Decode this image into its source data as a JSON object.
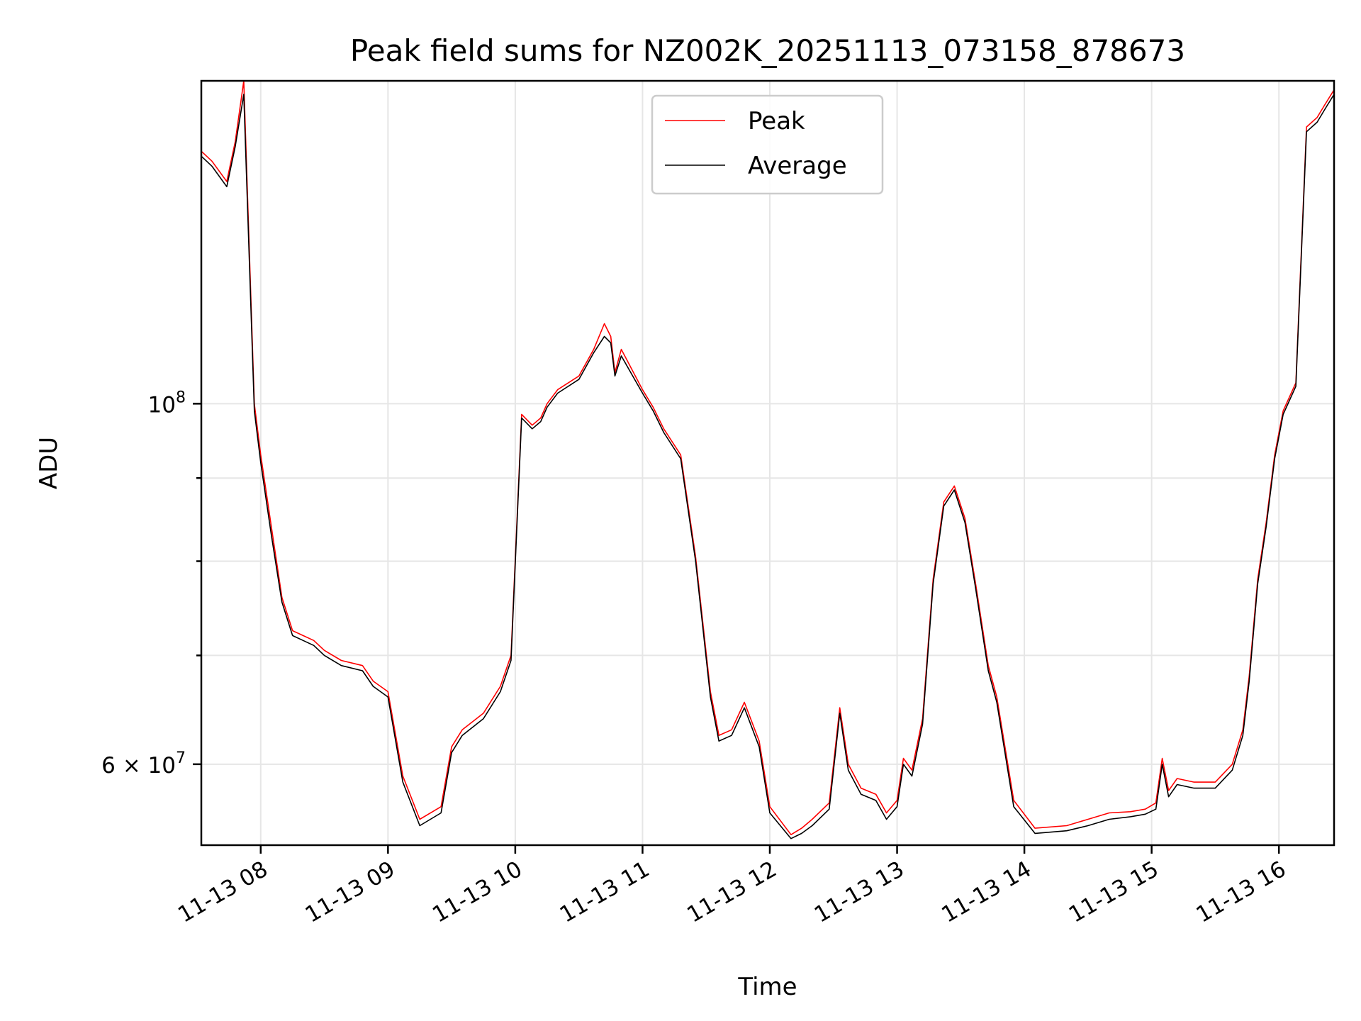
{
  "chart_data": {
    "type": "line",
    "title": "Peak field sums for NZ002K_20251113_073158_878673",
    "xlabel": "Time",
    "ylabel": "ADU",
    "y_scale": "log",
    "ylim": [
      53500000,
      158000000
    ],
    "xlim": [
      "2025-11-13 07:32",
      "2025-11-13 16:26"
    ],
    "x_tick_labels": [
      "11-13 08",
      "11-13 09",
      "11-13 10",
      "11-13 11",
      "11-13 12",
      "11-13 13",
      "11-13 14",
      "11-13 15",
      "11-13 16"
    ],
    "x_ticks": [
      "2025-11-13 08:00",
      "2025-11-13 09:00",
      "2025-11-13 10:00",
      "2025-11-13 11:00",
      "2025-11-13 12:00",
      "2025-11-13 13:00",
      "2025-11-13 14:00",
      "2025-11-13 15:00",
      "2025-11-13 16:00"
    ],
    "y_major_ticks": [
      {
        "value": 100000000,
        "base": "10",
        "exp": "8"
      },
      {
        "value": 60000000,
        "base": "6 × 10",
        "exp": "7"
      }
    ],
    "y_minor_ticks": [
      70000000,
      80000000,
      90000000
    ],
    "grid": true,
    "legend_position": "upper center",
    "series": [
      {
        "name": "Peak",
        "color": "#ff0000",
        "x": [
          "2025-11-13 07:32",
          "2025-11-13 07:37",
          "2025-11-13 07:44",
          "2025-11-13 07:48",
          "2025-11-13 07:52",
          "2025-11-13 07:57",
          "2025-11-13 08:00",
          "2025-11-13 08:05",
          "2025-11-13 08:10",
          "2025-11-13 08:15",
          "2025-11-13 08:20",
          "2025-11-13 08:25",
          "2025-11-13 08:30",
          "2025-11-13 08:38",
          "2025-11-13 08:48",
          "2025-11-13 08:53",
          "2025-11-13 09:00",
          "2025-11-13 09:07",
          "2025-11-13 09:15",
          "2025-11-13 09:25",
          "2025-11-13 09:30",
          "2025-11-13 09:35",
          "2025-11-13 09:45",
          "2025-11-13 09:53",
          "2025-11-13 09:58",
          "2025-11-13 10:03",
          "2025-11-13 10:08",
          "2025-11-13 10:12",
          "2025-11-13 10:15",
          "2025-11-13 10:20",
          "2025-11-13 10:30",
          "2025-11-13 10:37",
          "2025-11-13 10:42",
          "2025-11-13 10:45",
          "2025-11-13 10:47",
          "2025-11-13 10:50",
          "2025-11-13 11:00",
          "2025-11-13 11:05",
          "2025-11-13 11:10",
          "2025-11-13 11:18",
          "2025-11-13 11:25",
          "2025-11-13 11:32",
          "2025-11-13 11:36",
          "2025-11-13 11:42",
          "2025-11-13 11:48",
          "2025-11-13 11:55",
          "2025-11-13 12:00",
          "2025-11-13 12:10",
          "2025-11-13 12:15",
          "2025-11-13 12:20",
          "2025-11-13 12:28",
          "2025-11-13 12:33",
          "2025-11-13 12:37",
          "2025-11-13 12:43",
          "2025-11-13 12:50",
          "2025-11-13 12:55",
          "2025-11-13 13:00",
          "2025-11-13 13:03",
          "2025-11-13 13:07",
          "2025-11-13 13:12",
          "2025-11-13 13:17",
          "2025-11-13 13:22",
          "2025-11-13 13:27",
          "2025-11-13 13:32",
          "2025-11-13 13:37",
          "2025-11-13 13:43",
          "2025-11-13 13:47",
          "2025-11-13 13:55",
          "2025-11-13 14:05",
          "2025-11-13 14:20",
          "2025-11-13 14:30",
          "2025-11-13 14:40",
          "2025-11-13 14:50",
          "2025-11-13 14:57",
          "2025-11-13 15:02",
          "2025-11-13 15:05",
          "2025-11-13 15:08",
          "2025-11-13 15:12",
          "2025-11-13 15:20",
          "2025-11-13 15:30",
          "2025-11-13 15:38",
          "2025-11-13 15:43",
          "2025-11-13 15:46",
          "2025-11-13 15:50",
          "2025-11-13 15:54",
          "2025-11-13 15:58",
          "2025-11-13 16:02",
          "2025-11-13 16:08",
          "2025-11-13 16:13",
          "2025-11-13 16:18",
          "2025-11-13 16:22",
          "2025-11-13 16:26"
        ],
        "y": [
          143000000,
          141000000,
          137000000,
          145000000,
          158000000,
          100000000,
          93000000,
          84000000,
          76000000,
          72500000,
          72000000,
          71500000,
          70500000,
          69500000,
          69000000,
          67500000,
          66500000,
          59000000,
          55500000,
          56500000,
          61500000,
          63000000,
          64500000,
          67000000,
          70000000,
          98500000,
          97000000,
          98000000,
          100000000,
          102000000,
          104000000,
          108000000,
          112000000,
          110000000,
          104500000,
          108000000,
          102000000,
          99500000,
          96500000,
          93000000,
          80500000,
          66500000,
          62500000,
          63000000,
          65500000,
          62000000,
          56500000,
          54300000,
          54800000,
          55500000,
          56800000,
          65000000,
          60000000,
          58000000,
          57500000,
          56000000,
          57000000,
          60500000,
          59500000,
          64000000,
          78000000,
          87000000,
          89000000,
          85000000,
          77500000,
          69000000,
          66000000,
          57000000,
          54800000,
          55000000,
          55500000,
          56000000,
          56100000,
          56300000,
          56800000,
          60500000,
          57800000,
          58800000,
          58500000,
          58500000,
          60000000,
          63000000,
          68000000,
          78000000,
          84500000,
          93000000,
          99000000,
          103000000,
          148000000,
          150000000,
          153000000,
          156000000
        ]
      },
      {
        "name": "Average",
        "color": "#000000",
        "x": [
          "2025-11-13 07:32",
          "2025-11-13 07:37",
          "2025-11-13 07:44",
          "2025-11-13 07:48",
          "2025-11-13 07:52",
          "2025-11-13 07:57",
          "2025-11-13 08:00",
          "2025-11-13 08:05",
          "2025-11-13 08:10",
          "2025-11-13 08:15",
          "2025-11-13 08:20",
          "2025-11-13 08:25",
          "2025-11-13 08:30",
          "2025-11-13 08:38",
          "2025-11-13 08:48",
          "2025-11-13 08:53",
          "2025-11-13 09:00",
          "2025-11-13 09:07",
          "2025-11-13 09:15",
          "2025-11-13 09:25",
          "2025-11-13 09:30",
          "2025-11-13 09:35",
          "2025-11-13 09:45",
          "2025-11-13 09:53",
          "2025-11-13 09:58",
          "2025-11-13 10:03",
          "2025-11-13 10:08",
          "2025-11-13 10:12",
          "2025-11-13 10:15",
          "2025-11-13 10:20",
          "2025-11-13 10:30",
          "2025-11-13 10:37",
          "2025-11-13 10:42",
          "2025-11-13 10:45",
          "2025-11-13 10:47",
          "2025-11-13 10:50",
          "2025-11-13 11:00",
          "2025-11-13 11:05",
          "2025-11-13 11:10",
          "2025-11-13 11:18",
          "2025-11-13 11:25",
          "2025-11-13 11:32",
          "2025-11-13 11:36",
          "2025-11-13 11:42",
          "2025-11-13 11:48",
          "2025-11-13 11:55",
          "2025-11-13 12:00",
          "2025-11-13 12:10",
          "2025-11-13 12:15",
          "2025-11-13 12:20",
          "2025-11-13 12:28",
          "2025-11-13 12:33",
          "2025-11-13 12:37",
          "2025-11-13 12:43",
          "2025-11-13 12:50",
          "2025-11-13 12:55",
          "2025-11-13 13:00",
          "2025-11-13 13:03",
          "2025-11-13 13:07",
          "2025-11-13 13:12",
          "2025-11-13 13:17",
          "2025-11-13 13:22",
          "2025-11-13 13:27",
          "2025-11-13 13:32",
          "2025-11-13 13:37",
          "2025-11-13 13:43",
          "2025-11-13 13:47",
          "2025-11-13 13:55",
          "2025-11-13 14:05",
          "2025-11-13 14:20",
          "2025-11-13 14:30",
          "2025-11-13 14:40",
          "2025-11-13 14:50",
          "2025-11-13 14:57",
          "2025-11-13 15:02",
          "2025-11-13 15:05",
          "2025-11-13 15:08",
          "2025-11-13 15:12",
          "2025-11-13 15:20",
          "2025-11-13 15:30",
          "2025-11-13 15:38",
          "2025-11-13 15:43",
          "2025-11-13 15:46",
          "2025-11-13 15:50",
          "2025-11-13 15:54",
          "2025-11-13 15:58",
          "2025-11-13 16:02",
          "2025-11-13 16:08",
          "2025-11-13 16:13",
          "2025-11-13 16:18",
          "2025-11-13 16:22",
          "2025-11-13 16:26"
        ],
        "y": [
          142000000,
          140000000,
          136000000,
          144000000,
          155000000,
          99000000,
          92000000,
          83000000,
          75500000,
          72000000,
          71500000,
          71000000,
          70000000,
          69000000,
          68500000,
          67000000,
          66000000,
          58500000,
          55000000,
          56000000,
          61000000,
          62500000,
          64000000,
          66500000,
          69500000,
          98000000,
          96500000,
          97500000,
          99500000,
          101500000,
          103500000,
          107500000,
          110000000,
          109000000,
          104000000,
          107000000,
          101500000,
          99000000,
          96000000,
          92500000,
          80000000,
          66000000,
          62000000,
          62500000,
          65000000,
          61500000,
          56000000,
          54000000,
          54400000,
          55000000,
          56300000,
          64500000,
          59500000,
          57500000,
          57000000,
          55500000,
          56500000,
          60000000,
          59000000,
          63500000,
          77500000,
          86500000,
          88500000,
          84500000,
          77000000,
          68500000,
          65500000,
          56500000,
          54400000,
          54600000,
          55000000,
          55500000,
          55700000,
          55900000,
          56300000,
          60000000,
          57300000,
          58300000,
          58000000,
          58000000,
          59500000,
          62500000,
          67500000,
          77500000,
          84000000,
          92500000,
          98500000,
          102500000,
          147000000,
          149000000,
          152000000,
          155000000
        ]
      }
    ]
  }
}
